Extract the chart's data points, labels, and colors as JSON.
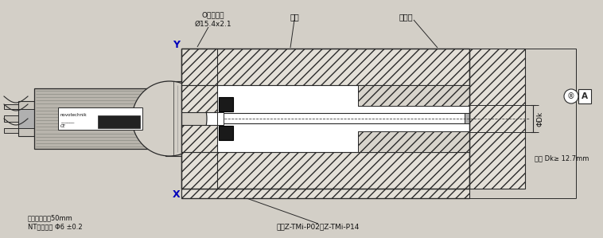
{
  "bg_color": "#d3cfc7",
  "line_color": "#2a2a2a",
  "hatch_fc": "#e4e0d8",
  "white": "#ffffff",
  "dark": "#1a1a1a",
  "light_gray": "#c8c4bc",
  "med_gray": "#a0a0a0",
  "labels": {
    "o_ring_line1": "O型密封圈",
    "o_ring_line2": "Ø15.4x2.1",
    "cylinder": "油缸",
    "piston_rod": "活塞杆",
    "cable_bend": "电缆弯曲直徉50mm",
    "cable_spec": "NT标准电缆 Φ6 ±0.2",
    "magnet": "磁块Z-TMi-P02或Z-TMi-P14",
    "dk_note": "注： Dk≥ 12.7mm",
    "dk_label": "ΦDk",
    "a_label": "A",
    "x_label": "X",
    "y_label": "Y"
  }
}
